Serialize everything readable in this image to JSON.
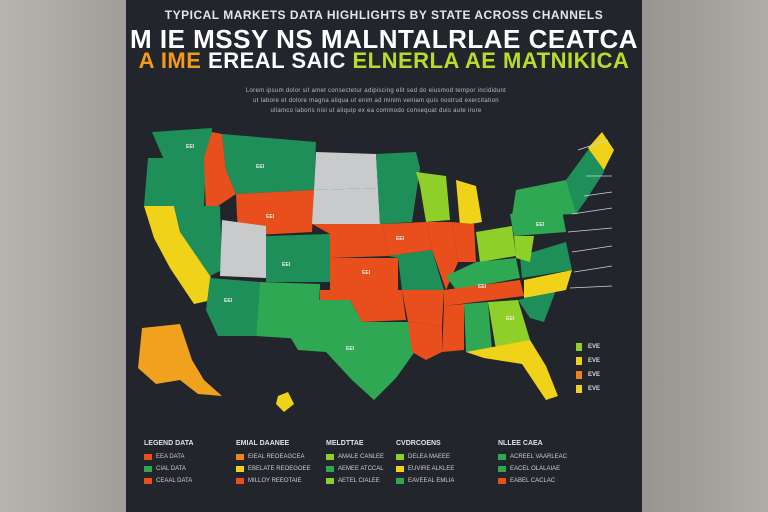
{
  "header": {
    "kicker": "TYPICAL MARKETS DATA HIGHLIGHTS BY STATE ACROSS CHANNELS",
    "title_line1": "M IE MSSY NS MALNTALRLAE CEATCA",
    "title_line2_a": "A IME",
    "title_line2_b": " EREAL SAIC ",
    "title_line2_c": "ELNERLA AE ",
    "title_line2_d": "MATNIKICA"
  },
  "description": [
    "Lorem ipsum dolor sit amet consectetur adipiscing elit sed do eiusmod tempor incididunt",
    "ut labore et dolore magna aliqua ut enim ad minim veniam quis nostrud exercitation",
    "ullamco laboris nisi ut aliquip ex ea commodo consequat duis aute irure"
  ],
  "colors": {
    "green_dark": "#1f8f5a",
    "green_mid": "#2fa854",
    "lime": "#8fcf2a",
    "yellow": "#f0d219",
    "orange": "#f0821e",
    "red": "#e84f1c",
    "gray": "#c8cacb"
  },
  "map": {
    "state_label": "EEI",
    "side_legend": [
      {
        "label": "EVE",
        "color": "#8fcf2a"
      },
      {
        "label": "EVE",
        "color": "#f0d219"
      },
      {
        "label": "EVE",
        "color": "#f0821e"
      },
      {
        "label": "EVE",
        "color": "#f0d219"
      }
    ]
  },
  "legend_groups": [
    {
      "header": "LEGEND DATA",
      "items": [
        {
          "label": "EEA DATA",
          "color": "#e84f1c"
        },
        {
          "label": "CIAL DATA",
          "color": "#2fa854"
        },
        {
          "label": "CEAAL DATA",
          "color": "#e84f1c"
        }
      ]
    },
    {
      "header": "EMIAL DAANEE",
      "items": [
        {
          "label": "EIEAL REOEAGCEA",
          "color": "#f0821e"
        },
        {
          "label": "EBELATE REOEGOEE",
          "color": "#f0d219"
        },
        {
          "label": "MILLOY REEOTAIE",
          "color": "#e84f1c"
        }
      ]
    },
    {
      "header": "MELDTTAE",
      "items": [
        {
          "label": "AMALE CANLEE",
          "color": "#8fcf2a"
        },
        {
          "label": "AEMEE ATCCAL",
          "color": "#2fa854"
        },
        {
          "label": "AETEL CIALEE",
          "color": "#8fcf2a"
        }
      ]
    },
    {
      "header": "CVDRCOENS",
      "items": [
        {
          "label": "DELEA MAEEE",
          "color": "#8fcf2a"
        },
        {
          "label": "EUVIRE ALKLEE",
          "color": "#f0d219"
        },
        {
          "label": "EAVEEAL EMLIA",
          "color": "#2fa854"
        }
      ]
    },
    {
      "header": "NLLEE CAEA",
      "items": [
        {
          "label": "ACREEL VAARLEAC",
          "color": "#2fa854"
        },
        {
          "label": "EACEL OLALAIAE",
          "color": "#2fa854"
        },
        {
          "label": "EABEL CACLAC",
          "color": "#e84f1c"
        }
      ]
    }
  ]
}
